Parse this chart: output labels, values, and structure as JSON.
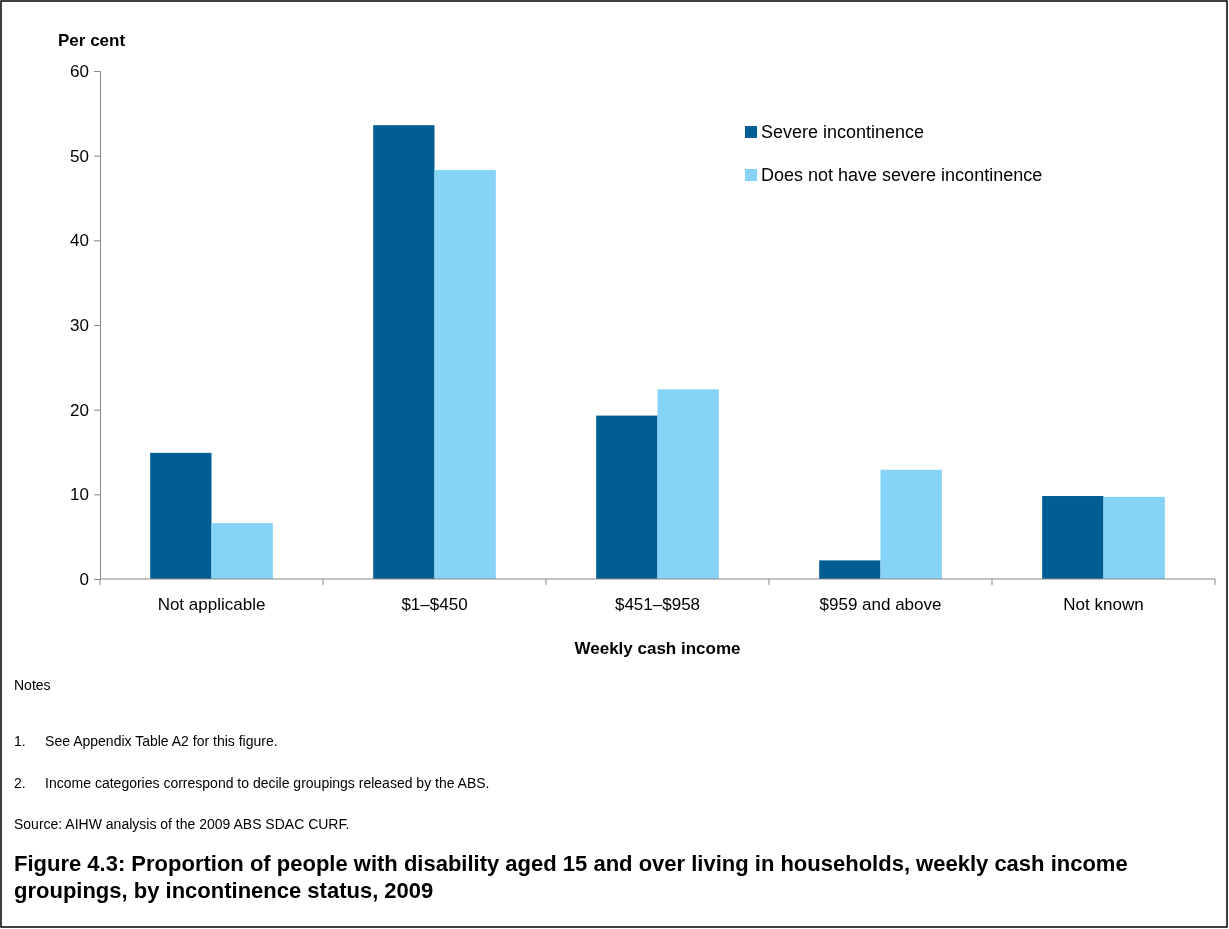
{
  "chart_data": {
    "type": "bar",
    "title": "Figure 4.3: Proportion of people with disability aged 15 and over living in households, weekly cash income groupings, by incontinence status, 2009",
    "xlabel": "Weekly cash income",
    "ylabel": "Per cent",
    "categories": [
      "Not applicable",
      "$1–$450",
      "$451–$958",
      "$959 and above",
      "Not known"
    ],
    "series": [
      {
        "name": "Severe incontinence",
        "color": "#005e95",
        "values": [
          14.9,
          53.6,
          19.3,
          2.2,
          9.8
        ]
      },
      {
        "name": "Does not have severe incontinence",
        "color": "#85d3f6",
        "values": [
          6.6,
          48.3,
          22.4,
          12.9,
          9.7
        ]
      }
    ],
    "ylim": [
      0,
      60
    ],
    "yticks": [
      0,
      10,
      20,
      30,
      40,
      50,
      60
    ],
    "grid": false,
    "legend": "top right",
    "annotations": [
      "Notes",
      "1.     See Appendix Table A2 for this figure.",
      "2.     Income categories correspond to decile groupings released by the ABS.",
      "Source: AIHW analysis of the 2009 ABS SDAC CURF."
    ]
  }
}
